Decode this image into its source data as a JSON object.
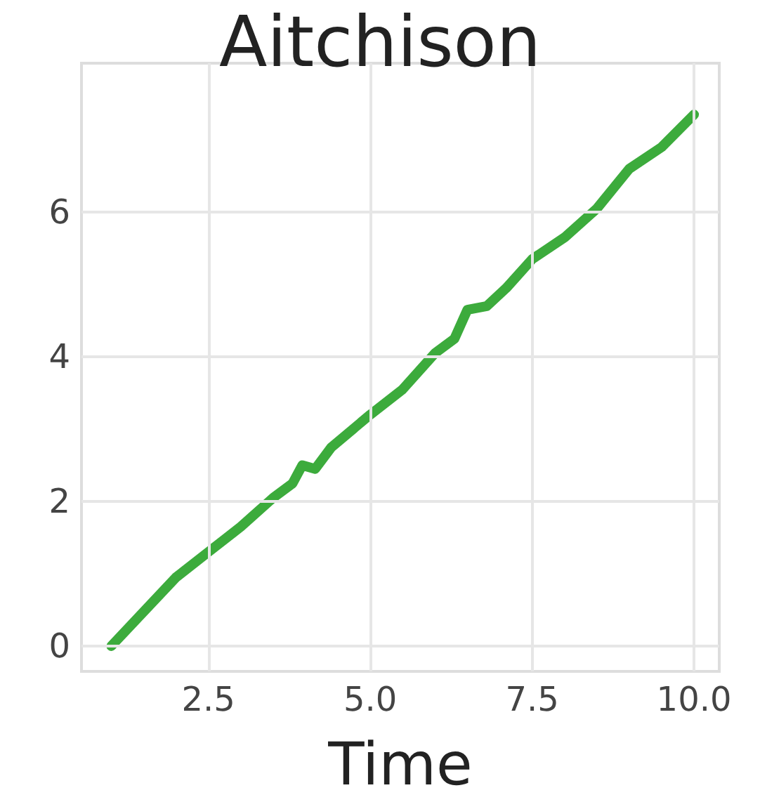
{
  "chart_data": {
    "type": "line",
    "title": "Aitchison",
    "xlabel": "Time",
    "x": [
      1,
      2,
      2.5,
      3,
      3.5,
      3.8,
      3.95,
      4.15,
      4.4,
      5,
      5.5,
      6,
      6.3,
      6.5,
      6.8,
      7.1,
      7.5,
      8,
      8.5,
      9,
      9.5,
      10
    ],
    "series": [
      {
        "color": "#3cab3c",
        "values": [
          0,
          0.95,
          1.3,
          1.65,
          2.05,
          2.25,
          2.5,
          2.45,
          2.75,
          3.2,
          3.55,
          4.05,
          4.25,
          4.65,
          4.7,
          4.95,
          5.35,
          5.65,
          6.05,
          6.6,
          6.9,
          7.35
        ]
      }
    ],
    "xlim": [
      0.54,
      10.39
    ],
    "xticks": [
      {
        "value": 2.5,
        "label": "2.5"
      },
      {
        "value": 5,
        "label": "5.0"
      },
      {
        "value": 7.5,
        "label": "7.5"
      },
      {
        "value": 10,
        "label": "10.0"
      }
    ],
    "ylim": [
      -0.35,
      8.06
    ],
    "yticks": [
      0,
      2,
      4,
      6
    ],
    "grid": true,
    "marker": "none",
    "line_style": "solid"
  }
}
